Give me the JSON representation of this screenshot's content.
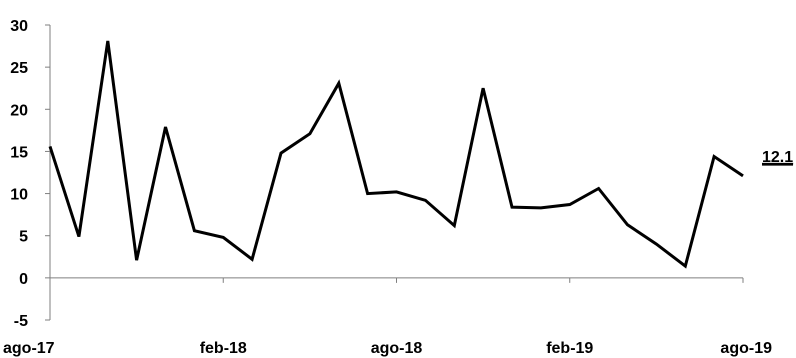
{
  "chart_data": {
    "type": "line",
    "title": "",
    "xlabel": "",
    "ylabel": "",
    "ylim": [
      -5,
      30
    ],
    "y_ticks": [
      -5,
      0,
      5,
      10,
      15,
      20,
      25,
      30
    ],
    "x_tick_labels": [
      "ago-17",
      "feb-18",
      "ago-18",
      "feb-19",
      "ago-19"
    ],
    "grid": false,
    "legend": "none",
    "line_color": "#000000",
    "series": [
      {
        "x": [
          "ago-17",
          "sep-17",
          "oct-17",
          "nov-17",
          "dic-17",
          "ene-18",
          "feb-18",
          "mar-18",
          "abr-18",
          "may-18",
          "jun-18",
          "jul-18",
          "ago-18",
          "sep-18",
          "oct-18",
          "nov-18",
          "dic-18",
          "ene-19",
          "feb-19",
          "mar-19",
          "abr-19",
          "may-19",
          "jun-19",
          "jul-19",
          "ago-19"
        ],
        "values": [
          15.6,
          4.9,
          28.1,
          2.1,
          17.9,
          5.6,
          4.8,
          2.2,
          14.8,
          17.1,
          23.1,
          10.0,
          10.2,
          9.2,
          6.2,
          22.5,
          8.4,
          8.3,
          8.7,
          10.6,
          6.3,
          4.0,
          1.4,
          14.4,
          12.1
        ]
      }
    ],
    "end_label": "12.1"
  }
}
